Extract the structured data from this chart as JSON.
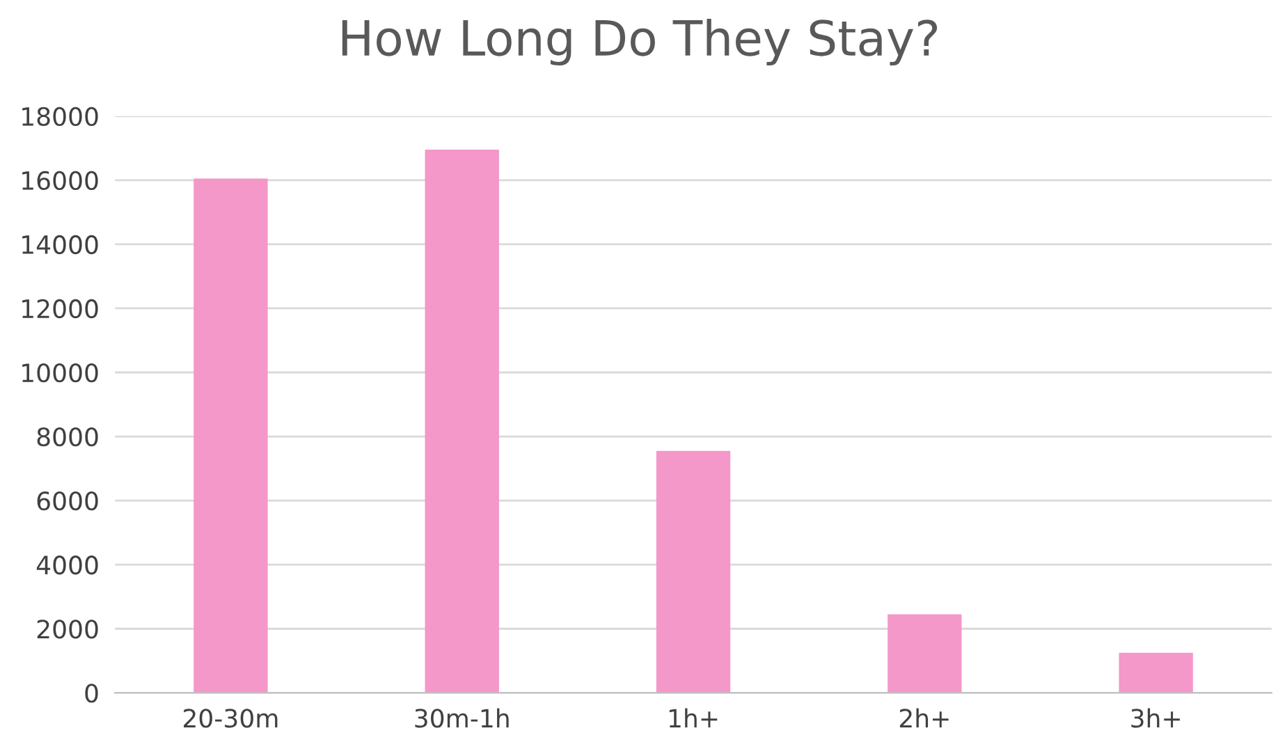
{
  "chart_data": {
    "type": "bar",
    "title": "How Long Do They Stay?",
    "categories": [
      "20-30m",
      "30m-1h",
      "1h+",
      "2h+",
      "3h+"
    ],
    "values": [
      16050,
      16950,
      7550,
      2450,
      1250
    ],
    "color": "#f497c9",
    "ylim": [
      0,
      18000
    ],
    "yticks": [
      0,
      2000,
      4000,
      6000,
      8000,
      10000,
      12000,
      14000,
      16000,
      18000
    ],
    "grid": "y",
    "legend": false
  }
}
